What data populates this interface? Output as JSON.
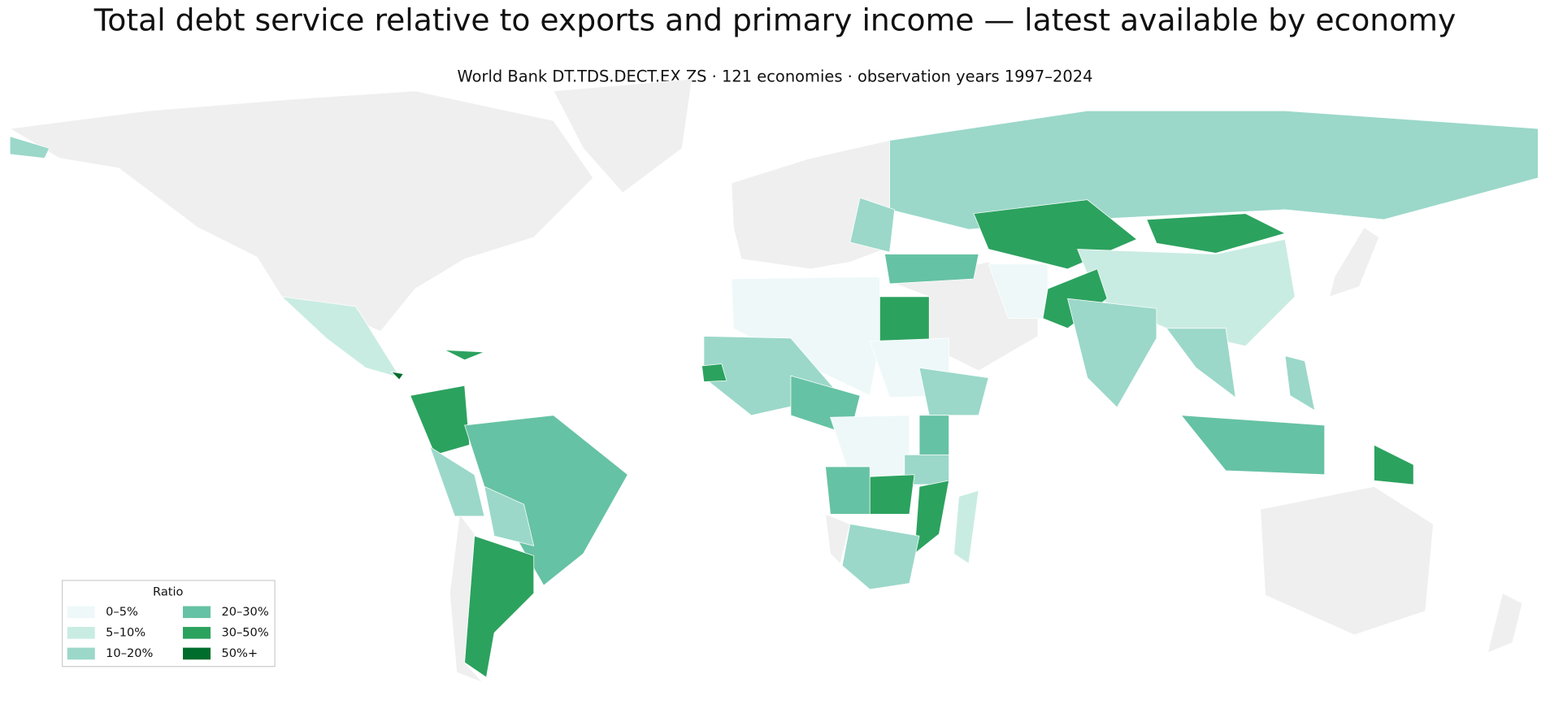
{
  "title": "Total debt service relative to exports and primary income — latest available by economy",
  "subtitle": "World Bank DT.TDS.DECT.EX.ZS · 121 economies · observation years 1997–2024",
  "legend": {
    "title": "Ratio",
    "items": [
      {
        "label": "0–5%",
        "color": "#eef8f9"
      },
      {
        "label": "5–10%",
        "color": "#c9ece2"
      },
      {
        "label": "10–20%",
        "color": "#9bd8c9"
      },
      {
        "label": "20–30%",
        "color": "#66c2a4"
      },
      {
        "label": "30–50%",
        "color": "#2ca25f"
      },
      {
        "label": "50%+",
        "color": "#006d2c"
      }
    ]
  }
}
